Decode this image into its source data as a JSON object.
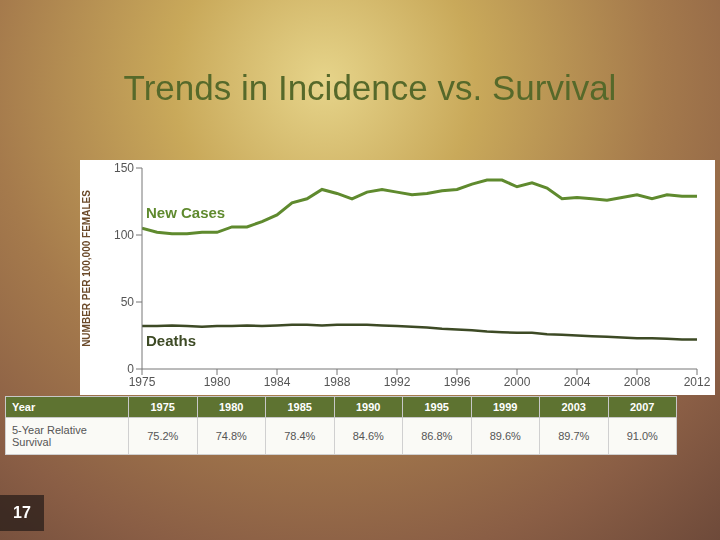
{
  "title": "Trends in Incidence vs. Survival",
  "page_number": 17,
  "chart_data": {
    "type": "line",
    "x": [
      1975,
      1976,
      1977,
      1978,
      1979,
      1980,
      1981,
      1982,
      1983,
      1984,
      1985,
      1986,
      1987,
      1988,
      1989,
      1990,
      1991,
      1992,
      1993,
      1994,
      1995,
      1996,
      1997,
      1998,
      1999,
      2000,
      2001,
      2002,
      2003,
      2004,
      2005,
      2006,
      2007,
      2008,
      2009,
      2010,
      2011,
      2012
    ],
    "series": [
      {
        "name": "New Cases",
        "color": "#5f8a2e",
        "values": [
          105,
          102,
          101,
          101,
          102,
          102,
          106,
          106,
          110,
          115,
          124,
          127,
          134,
          131,
          127,
          132,
          134,
          132,
          130,
          131,
          133,
          134,
          138,
          141,
          141,
          136,
          139,
          135,
          127,
          128,
          127,
          126,
          128,
          130,
          127,
          130,
          129,
          129
        ]
      },
      {
        "name": "Deaths",
        "color": "#3d4a25",
        "values": [
          32,
          32,
          32.5,
          32,
          31.5,
          32,
          32,
          32.5,
          32,
          32.5,
          33,
          33,
          32.5,
          33,
          33,
          33,
          32.5,
          32,
          31.5,
          31,
          30,
          29.5,
          29,
          28,
          27.5,
          27,
          27,
          26,
          25.5,
          25,
          24.5,
          24,
          23.5,
          23,
          23,
          22.5,
          22,
          22
        ]
      }
    ],
    "xlim": [
      1975,
      2012
    ],
    "xticks": [
      1975,
      1980,
      1984,
      1988,
      1992,
      1996,
      2000,
      2004,
      2008,
      2012
    ],
    "ylim": [
      0,
      150
    ],
    "yticks": [
      0,
      50,
      100,
      150
    ],
    "y_label": "NUMBER PER 100,000 FEMALES",
    "grid": false
  },
  "table": {
    "header": [
      "Year",
      "1975",
      "1980",
      "1985",
      "1990",
      "1995",
      "1999",
      "2003",
      "2007"
    ],
    "rows": [
      [
        "5-Year Relative Survival",
        "75.2%",
        "74.8%",
        "78.4%",
        "84.6%",
        "86.8%",
        "89.6%",
        "89.7%",
        "91.0%"
      ]
    ]
  }
}
